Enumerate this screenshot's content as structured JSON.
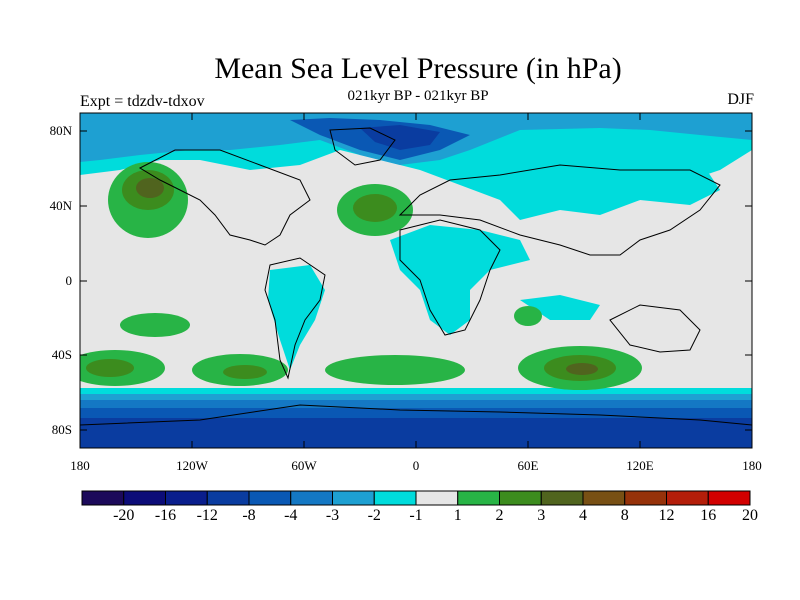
{
  "header": {
    "title": "Mean Sea Level Pressure (in hPa)",
    "subtitle": "021kyr BP - 021kyr BP",
    "experiment": "Expt = tdzdv-tdxov",
    "season": "DJF"
  },
  "map": {
    "projection": "cylindrical-equidistant",
    "lon_range": [
      -180,
      180
    ],
    "lat_range": [
      -90,
      90
    ],
    "coastlines": true,
    "latitude_labels": [
      "80N",
      "40N",
      "0",
      "40S",
      "80S"
    ],
    "longitude_labels": [
      "180",
      "120W",
      "60W",
      "0",
      "60E",
      "120E",
      "180"
    ],
    "background_color": "#e6e6e6",
    "regions": [
      {
        "name": "Arctic / North Atlantic low",
        "level": "-4"
      },
      {
        "name": "Southern Ocean band",
        "level": "-8"
      },
      {
        "name": "North Pacific high",
        "level": "3"
      },
      {
        "name": "Azores high",
        "level": "3"
      },
      {
        "name": "South Pacific high",
        "level": "2"
      },
      {
        "name": "South Indian Ocean high",
        "level": "3"
      },
      {
        "name": "Siberia / Central Asia",
        "level": "-1"
      }
    ]
  },
  "colorbar": {
    "labels": [
      "-20",
      "-16",
      "-12",
      "-8",
      "-4",
      "-3",
      "-2",
      "-1",
      "1",
      "2",
      "3",
      "4",
      "8",
      "12",
      "16",
      "20"
    ],
    "colors": [
      "#1c0a5a",
      "#0c0c78",
      "#0a1e8c",
      "#0a3ca0",
      "#0a58b4",
      "#1478c4",
      "#1ea0d2",
      "#00dcdc",
      "#e6e6e6",
      "#28b446",
      "#3c8c1e",
      "#50641e",
      "#785014",
      "#96320a",
      "#b41e0a",
      "#d20000"
    ]
  }
}
